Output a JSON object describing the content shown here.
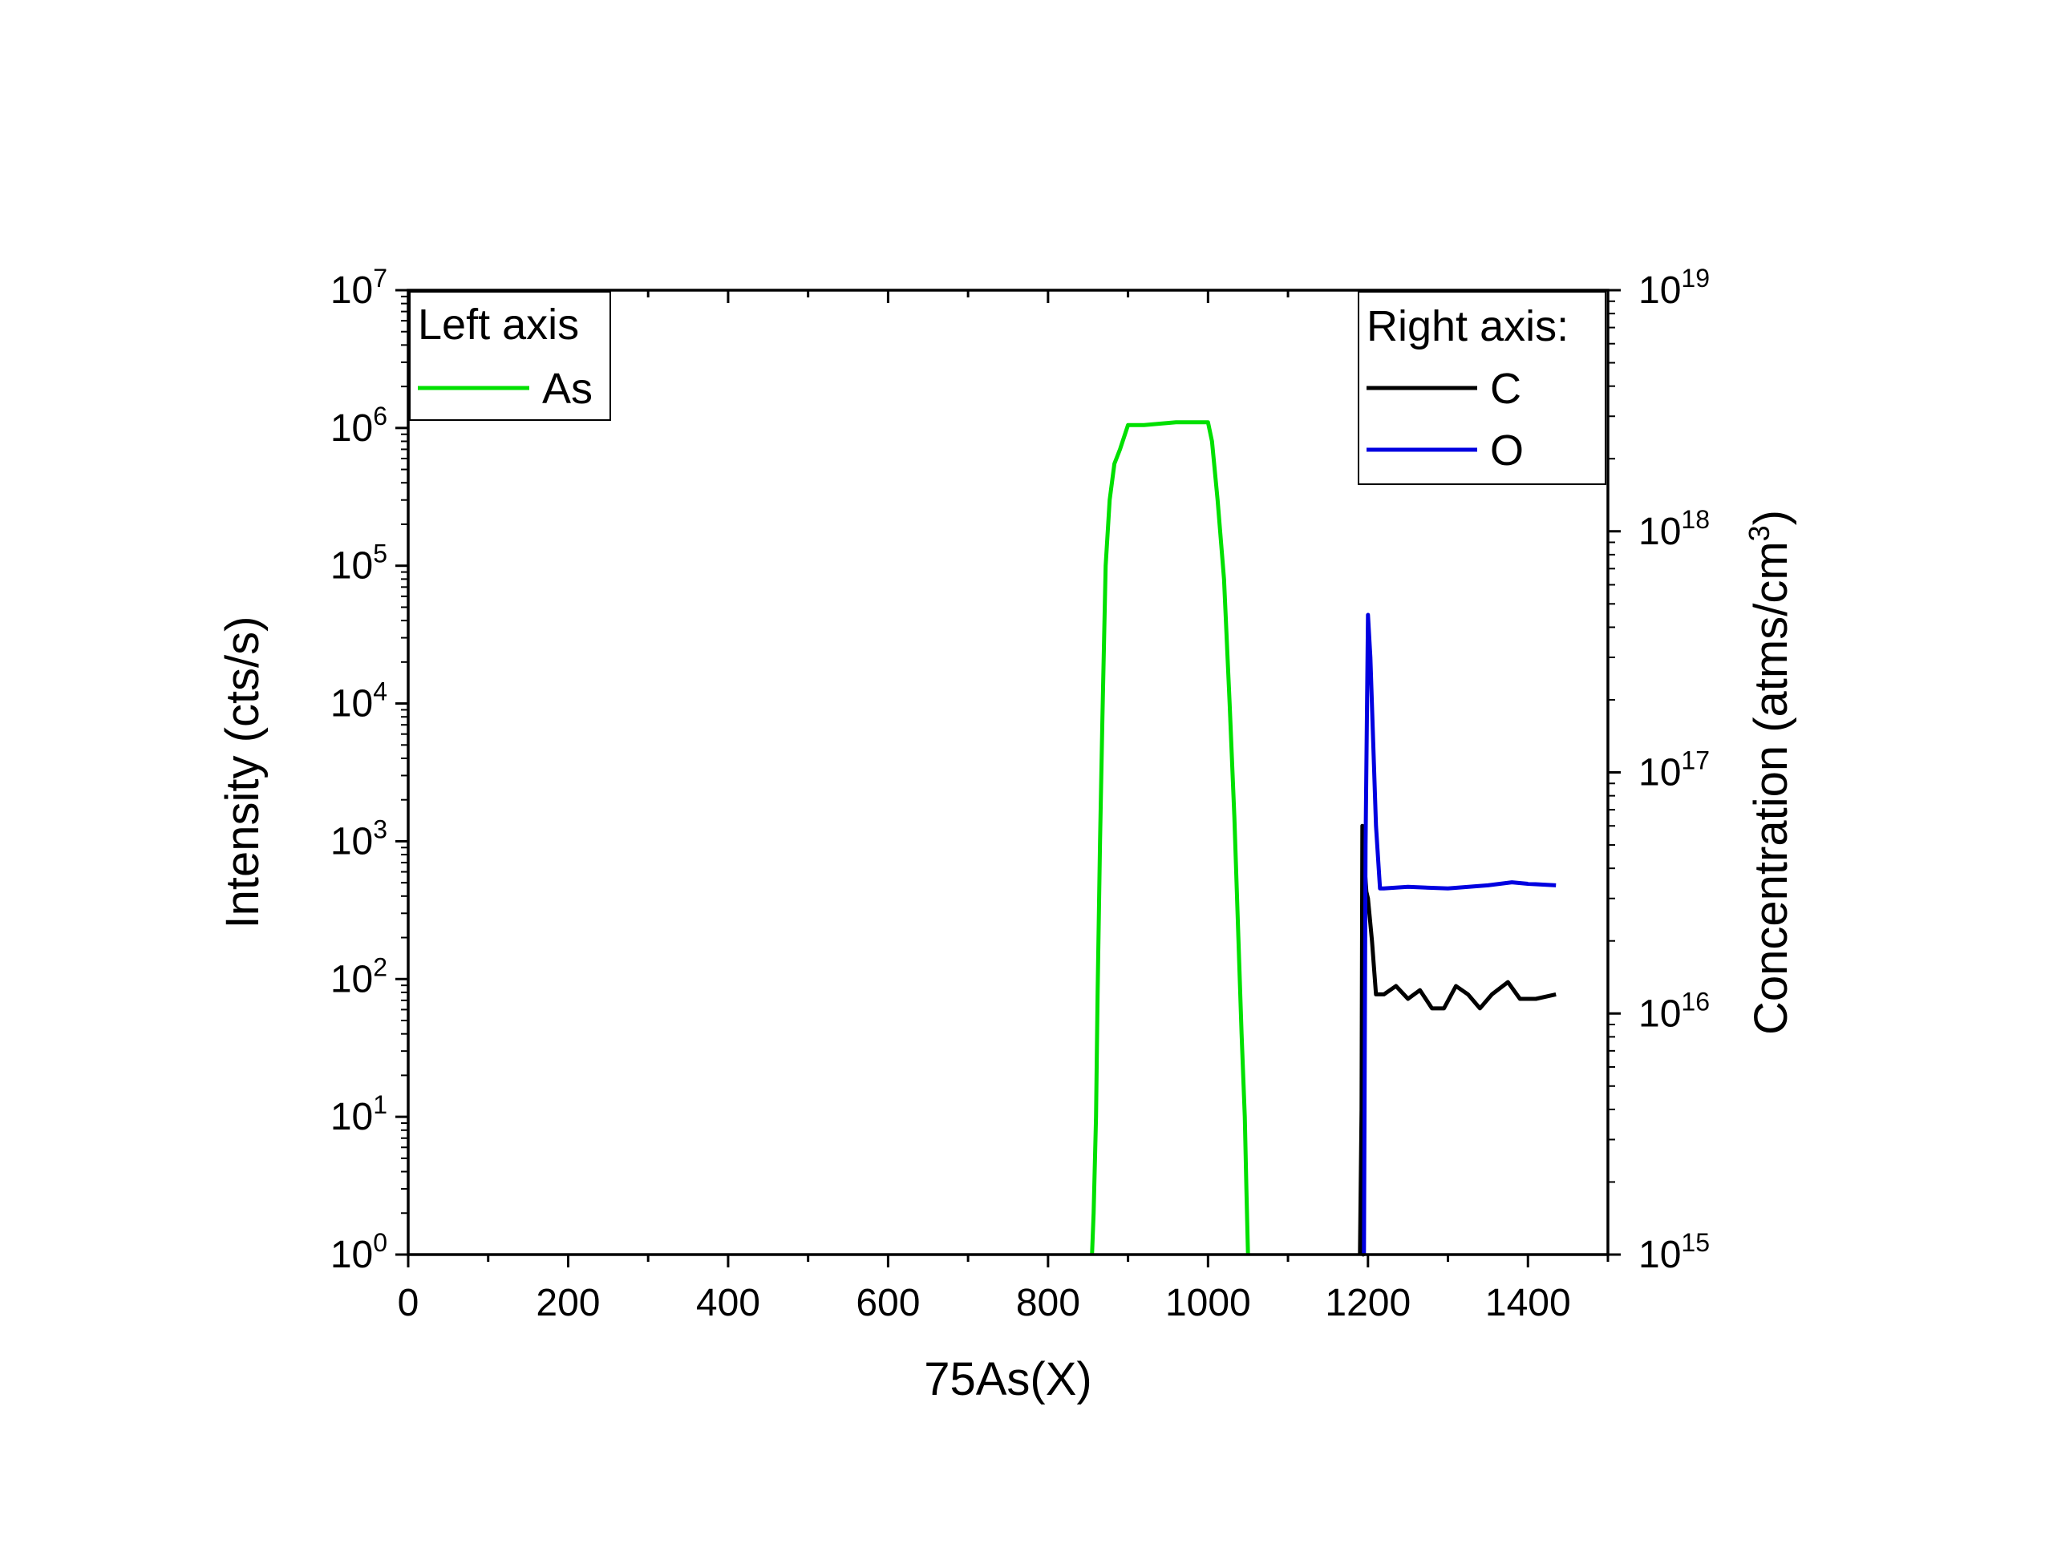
{
  "chart_data": {
    "type": "line",
    "title": "",
    "xlabel": "75As(X)",
    "ylabel_left": "Intensity (cts/s)",
    "ylabel_right": "Concentration (atms/cm",
    "ylabel_right_sup": "3",
    "ylabel_right_close": ")",
    "xlim": [
      0,
      1500
    ],
    "ylim_left": [
      1,
      10000000
    ],
    "ylim_right": [
      1000000000000000.0,
      1e+19
    ],
    "yscale": "log",
    "grid": false,
    "x_ticks": [
      0,
      200,
      400,
      600,
      800,
      1000,
      1200,
      1400
    ],
    "x_tick_labels": [
      "0",
      "200",
      "400",
      "600",
      "800",
      "1000",
      "1200",
      "1400"
    ],
    "left_ticks": [
      {
        "base": "10",
        "exp": "0"
      },
      {
        "base": "10",
        "exp": "1"
      },
      {
        "base": "10",
        "exp": "2"
      },
      {
        "base": "10",
        "exp": "3"
      },
      {
        "base": "10",
        "exp": "4"
      },
      {
        "base": "10",
        "exp": "5"
      },
      {
        "base": "10",
        "exp": "6"
      },
      {
        "base": "10",
        "exp": "7"
      }
    ],
    "right_ticks": [
      {
        "base": "10",
        "exp": "15"
      },
      {
        "base": "10",
        "exp": "16"
      },
      {
        "base": "10",
        "exp": "17"
      },
      {
        "base": "10",
        "exp": "18"
      },
      {
        "base": "10",
        "exp": "19"
      }
    ],
    "legend_left": {
      "title": "Left axis",
      "placement": "top-left",
      "entries": [
        "As"
      ]
    },
    "legend_right": {
      "title": "Right axis:",
      "placement": "top-right",
      "entries": [
        "C",
        "O"
      ]
    },
    "series": [
      {
        "name": "As",
        "axis": "left",
        "color": "#00e000",
        "x": [
          855,
          857,
          860,
          862,
          865,
          868,
          872,
          877,
          883,
          890,
          900,
          920,
          960,
          1000,
          1005,
          1012,
          1020,
          1027,
          1033,
          1038,
          1042,
          1046,
          1048,
          1050
        ],
        "y": [
          1,
          2,
          10,
          80,
          1000,
          8000,
          100000,
          300000,
          550000,
          700000,
          1050000,
          1050000,
          1100000,
          1100000,
          800000,
          300000,
          80000,
          10000,
          1500,
          200,
          40,
          10,
          3,
          1
        ]
      },
      {
        "name": "C",
        "axis": "right",
        "color": "#000000",
        "x": [
          1190,
          1192,
          1193,
          1194,
          1196,
          1198,
          1200,
          1205,
          1210,
          1220,
          1235,
          1250,
          1265,
          1280,
          1295,
          1310,
          1325,
          1340,
          1355,
          1375,
          1390,
          1410,
          1435
        ],
        "y": [
          1000000000000000.0,
          4000000000000000.0,
          6e+16,
          1000000000000000.0,
          4e+16,
          3.2e+16,
          3e+16,
          2e+16,
          1.2e+16,
          1.2e+16,
          1.3e+16,
          1.15e+16,
          1.25e+16,
          1.05e+16,
          1.05e+16,
          1.3e+16,
          1.2e+16,
          1.05e+16,
          1.2e+16,
          1.35e+16,
          1.15e+16,
          1.15e+16,
          1.2e+16
        ]
      },
      {
        "name": "O",
        "axis": "right",
        "color": "#0000e0",
        "x": [
          1195,
          1197,
          1200,
          1203,
          1206,
          1210,
          1215,
          1220,
          1250,
          1300,
          1350,
          1380,
          1400,
          1435
        ],
        "y": [
          1000000000000000.0,
          5e+16,
          4.5e+17,
          3e+17,
          1.5e+17,
          6e+16,
          3.3e+16,
          3.3e+16,
          3.35e+16,
          3.3e+16,
          3.4e+16,
          3.5e+16,
          3.45e+16,
          3.4e+16
        ]
      }
    ]
  }
}
